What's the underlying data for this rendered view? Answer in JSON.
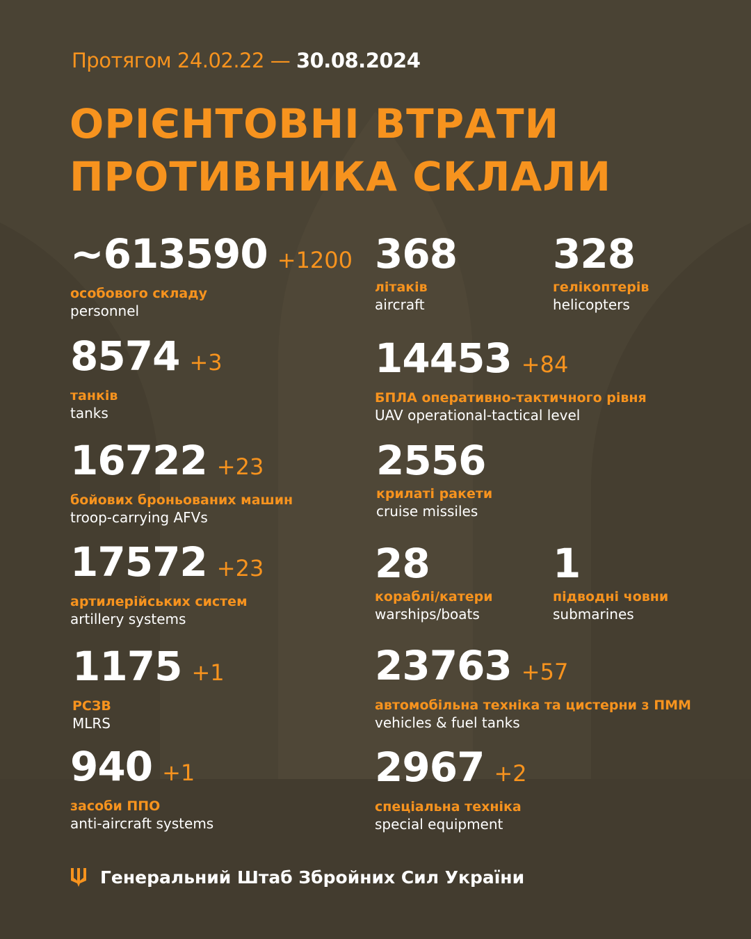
{
  "header": {
    "period_prefix": "Протягом 24.02.22 —",
    "period_end": "30.08.2024",
    "title_line1": "ОРІЄНТОВНІ ВТРАТИ",
    "title_line2": "ПРОТИВНИКА СКЛАЛИ"
  },
  "stats": [
    {
      "value": "~613590",
      "delta": "+1200",
      "ua": "особового складу",
      "en": "personnel"
    },
    {
      "value": "368",
      "delta": "",
      "ua": "літаків",
      "en": "aircraft"
    },
    {
      "value": "328",
      "delta": "",
      "ua": "гелікоптерів",
      "en": "helicopters"
    },
    {
      "value": "8574",
      "delta": "+3",
      "ua": "танків",
      "en": "tanks"
    },
    {
      "value": "14453",
      "delta": "+84",
      "ua": "БПЛА оперативно-тактичного рівня",
      "en": "UAV operational-tactical level"
    },
    {
      "value": "16722",
      "delta": "+23",
      "ua": "бойових броньованих машин",
      "en": "troop-carrying AFVs"
    },
    {
      "value": "2556",
      "delta": "",
      "ua": "крилаті ракети",
      "en": "cruise missiles"
    },
    {
      "value": "17572",
      "delta": "+23",
      "ua": "артилерійських систем",
      "en": "artillery systems"
    },
    {
      "value": "28",
      "delta": "",
      "ua": "кораблі/катери",
      "en": "warships/boats"
    },
    {
      "value": "1",
      "delta": "",
      "ua": "підводні човни",
      "en": "submarines"
    },
    {
      "value": "1175",
      "delta": "+1",
      "ua": "РСЗВ",
      "en": "MLRS"
    },
    {
      "value": "23763",
      "delta": "+57",
      "ua": "автомобільна техніка та цистерни з ПММ",
      "en": "vehicles & fuel tanks"
    },
    {
      "value": "940",
      "delta": "+1",
      "ua": "засоби ППО",
      "en": "anti-aircraft systems"
    },
    {
      "value": "2967",
      "delta": "+2",
      "ua": "спеціальна техніка",
      "en": "special equipment"
    }
  ],
  "footer": {
    "text": "Генеральний Штаб Збройних Сил України",
    "icon": "trident-icon"
  },
  "colors": {
    "background": "#4a4334",
    "accent": "#f7931e",
    "text": "#ffffff"
  }
}
